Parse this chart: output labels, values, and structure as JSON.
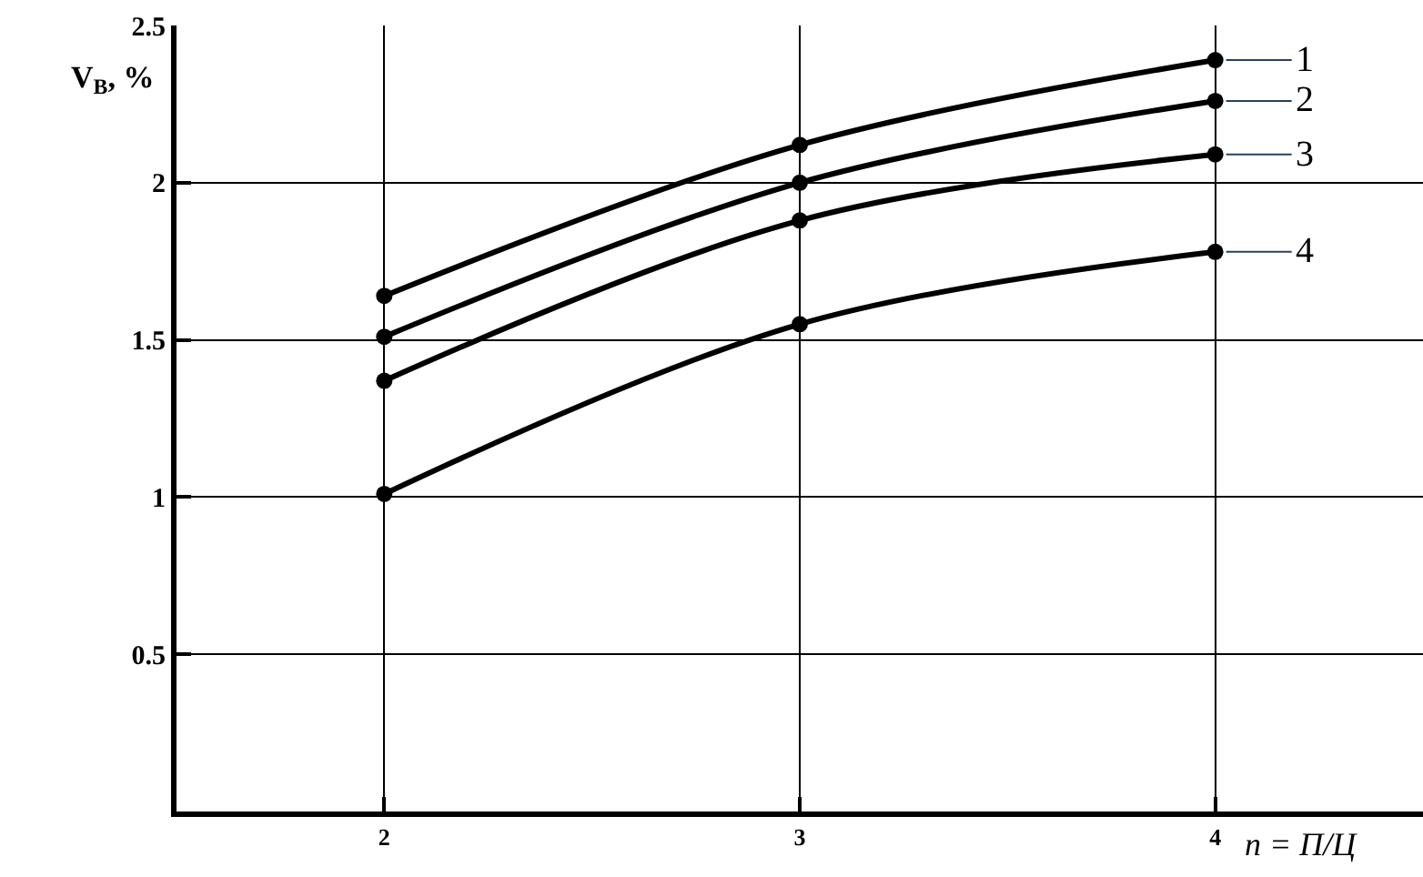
{
  "chart_data": {
    "type": "line",
    "xlabel": "n = П/Ц",
    "ylabel": "V$_{B}$, %",
    "x": [
      2,
      3,
      4
    ],
    "series": [
      {
        "name": "1",
        "color": "#000000",
        "values": [
          1.64,
          2.12,
          2.39
        ]
      },
      {
        "name": "2",
        "color": "#000000",
        "values": [
          1.51,
          2.0,
          2.26
        ]
      },
      {
        "name": "3",
        "color": "#000000",
        "values": [
          1.37,
          1.88,
          2.09
        ]
      },
      {
        "name": "4",
        "color": "#000000",
        "values": [
          1.01,
          1.55,
          1.78
        ]
      }
    ],
    "xlim": [
      1.5,
      4.5
    ],
    "xticks": [
      2,
      3,
      4
    ],
    "ylim": [
      0,
      2.5
    ],
    "yticks": [
      0.5,
      1,
      1.5,
      2,
      2.5
    ],
    "grid": true,
    "legend": false,
    "marker": "circle",
    "line_style": "solid"
  }
}
